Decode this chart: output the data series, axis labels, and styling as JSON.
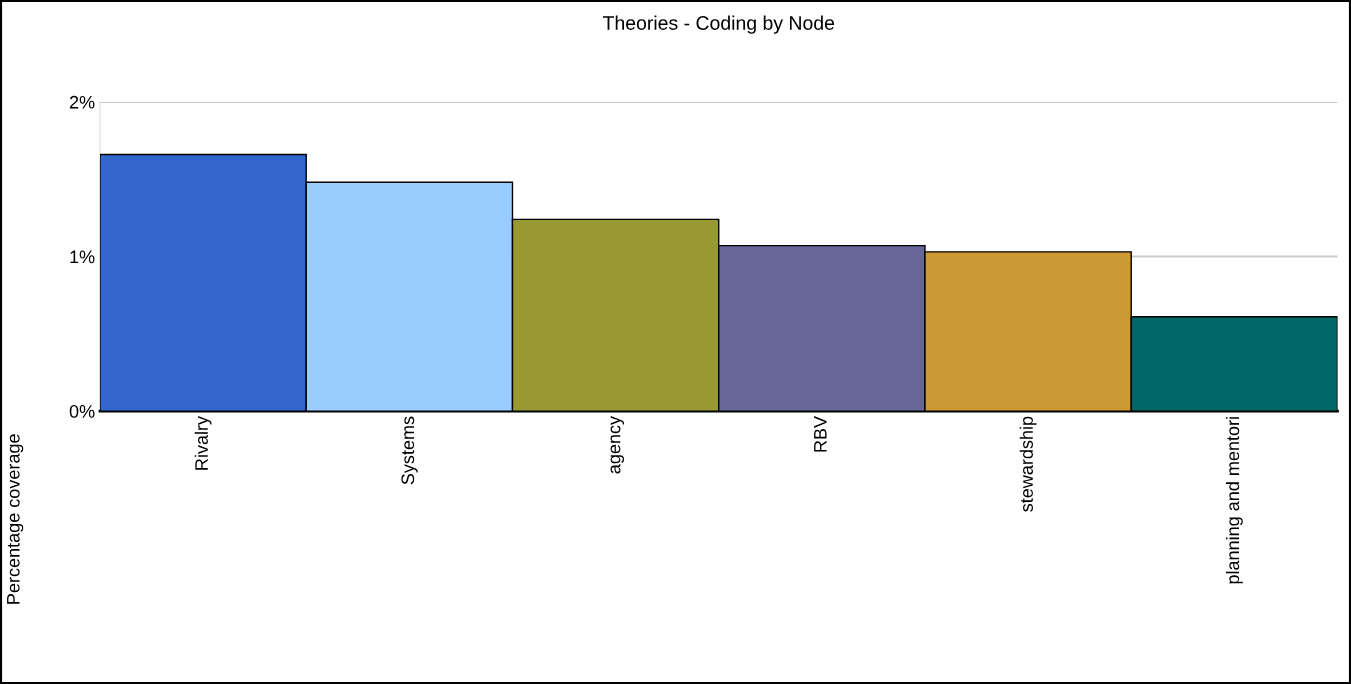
{
  "chart_data": {
    "type": "bar",
    "title": "Theories - Coding by Node",
    "ylabel": "Percentage coverage",
    "categories": [
      "Rivalry",
      "Systems",
      "agency",
      "RBV",
      "stewardship",
      "planning and mentori"
    ],
    "values": [
      1.66,
      1.48,
      1.24,
      1.07,
      1.03,
      0.61
    ],
    "colors": [
      "#3366cc",
      "#99ccff",
      "#999933",
      "#666699",
      "#cc9933",
      "#006666"
    ],
    "ylim": [
      0,
      2
    ],
    "yticks": [
      {
        "value": 0,
        "label": "0%"
      },
      {
        "value": 1,
        "label": "1%"
      },
      {
        "value": 2,
        "label": "2%"
      }
    ],
    "grid": "y",
    "legend": false
  }
}
